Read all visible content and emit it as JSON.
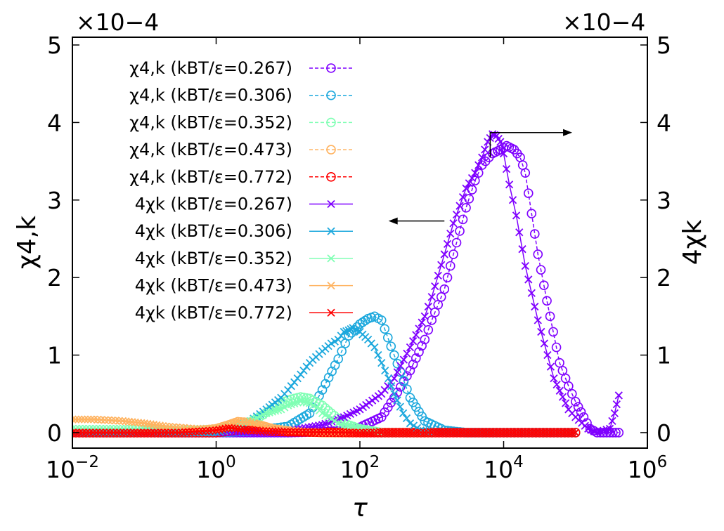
{
  "chart_data": {
    "type": "line",
    "title": "",
    "xlabel": "τ",
    "ylabel_left": "χ4,k",
    "ylabel_right": "4χk",
    "xscale": "log",
    "xlim": [
      0.01,
      1000000
    ],
    "ylim": [
      -0.2,
      5.1
    ],
    "y_multiplier": "×10−4",
    "xticks": [
      {
        "value": 0.01,
        "mant": "10",
        "exp": "−2"
      },
      {
        "value": 1,
        "mant": "10",
        "exp": "0"
      },
      {
        "value": 100,
        "mant": "10",
        "exp": "2"
      },
      {
        "value": 10000,
        "mant": "10",
        "exp": "4"
      },
      {
        "value": 1000000,
        "mant": "10",
        "exp": "6"
      }
    ],
    "yticks": [
      0,
      1,
      2,
      3,
      4,
      5
    ],
    "ytick_labels": [
      "0",
      "1",
      "2",
      "3",
      "4",
      "5"
    ],
    "legend_position": "upper-left",
    "arrows": [
      {
        "name": "arrow-right-axis",
        "points": [
          [
            6500,
            3.55
          ],
          [
            6500,
            3.87
          ]
        ],
        "to": [
          90000,
          3.87
        ],
        "meaning": "4χk read on right axis"
      },
      {
        "name": "arrow-left-axis",
        "from": [
          1500,
          2.73
        ],
        "to": [
          250,
          2.73
        ],
        "meaning": "χ4,k read on left axis"
      }
    ],
    "series": [
      {
        "name": "χ4,k (kBT/ε=0.267)",
        "kind": "chi4",
        "T": "0.267",
        "color": "#7f00ff",
        "marker": "o",
        "linestyle": "dashed",
        "x": [
          0.01,
          0.03,
          0.1,
          0.3,
          1,
          3,
          10,
          30,
          60,
          100,
          200,
          300,
          500,
          800,
          1000,
          1500,
          2000,
          3000,
          4000,
          5000,
          7000,
          9000,
          11000,
          14000,
          17000,
          20000,
          30000,
          40000,
          60000,
          80000,
          100000,
          130000,
          160000,
          200000,
          300000,
          400000
        ],
        "y": [
          0.0,
          0.0,
          0.0,
          0.0,
          0.0,
          0.0,
          0.0,
          0.01,
          0.03,
          0.07,
          0.2,
          0.45,
          0.8,
          1.2,
          1.45,
          1.85,
          2.3,
          2.9,
          3.25,
          3.45,
          3.6,
          3.65,
          3.7,
          3.65,
          3.55,
          3.35,
          2.3,
          1.7,
          0.9,
          0.6,
          0.4,
          0.2,
          0.05,
          0.0,
          0.0,
          0.0
        ]
      },
      {
        "name": "χ4,k (kBT/ε=0.306)",
        "kind": "chi4",
        "T": "0.306",
        "color": "#1ca8dd",
        "marker": "o",
        "linestyle": "dashed",
        "x": [
          0.01,
          0.1,
          1,
          3,
          10,
          20,
          30,
          50,
          70,
          100,
          130,
          160,
          200,
          300,
          500,
          800,
          1500,
          3000,
          10000,
          100000
        ],
        "y": [
          0.0,
          0.0,
          0.0,
          0.02,
          0.08,
          0.25,
          0.55,
          0.95,
          1.25,
          1.4,
          1.47,
          1.5,
          1.45,
          1.0,
          0.45,
          0.15,
          0.03,
          0.0,
          0.0,
          0.0
        ]
      },
      {
        "name": "χ4,k (kBT/ε=0.352)",
        "kind": "chi4",
        "T": "0.352",
        "color": "#80ffb4",
        "marker": "o",
        "linestyle": "dashed",
        "x": [
          0.01,
          0.1,
          1,
          2,
          4,
          7,
          10,
          15,
          20,
          30,
          40,
          60,
          100,
          200,
          1000
        ],
        "y": [
          0.0,
          0.0,
          0.01,
          0.05,
          0.2,
          0.35,
          0.42,
          0.46,
          0.44,
          0.35,
          0.25,
          0.12,
          0.05,
          0.0,
          0.0
        ]
      },
      {
        "name": "χ4,k (kBT/ε=0.473)",
        "kind": "chi4",
        "T": "0.473",
        "color": "#ffb360",
        "marker": "o",
        "linestyle": "dashed",
        "x": [
          0.01,
          0.03,
          0.1,
          0.3,
          1,
          1.5,
          2,
          3,
          4,
          6,
          10,
          30,
          100
        ],
        "y": [
          0.0,
          0.0,
          0.0,
          0.0,
          0.05,
          0.1,
          0.14,
          0.13,
          0.1,
          0.05,
          0.02,
          0.0,
          0.0
        ]
      },
      {
        "name": "χ4,k (kBT/ε=0.772)",
        "kind": "chi4",
        "T": "0.772",
        "color": "#ff0000",
        "marker": "o",
        "linestyle": "dashed",
        "x": [
          0.01,
          0.03,
          0.1,
          0.3,
          1,
          2,
          3,
          10,
          100,
          1000,
          10000,
          100000
        ],
        "y": [
          0.0,
          0.0,
          0.0,
          0.0,
          0.0,
          0.03,
          0.03,
          0.01,
          0.0,
          0.0,
          0.0,
          0.0
        ]
      },
      {
        "name": "4χk (kBT/ε=0.267)",
        "kind": "4chi",
        "T": "0.267",
        "color": "#7f00ff",
        "marker": "x",
        "linestyle": "solid",
        "x": [
          0.01,
          0.1,
          1,
          10,
          30,
          60,
          100,
          200,
          300,
          500,
          800,
          1000,
          1500,
          2000,
          3000,
          4000,
          5000,
          6000,
          7000,
          8000,
          9000,
          10000,
          12000,
          15000,
          20000,
          30000,
          50000,
          80000,
          100000,
          150000,
          200000,
          300000,
          350000,
          400000
        ],
        "y": [
          0.0,
          0.0,
          0.0,
          0.02,
          0.1,
          0.2,
          0.3,
          0.5,
          0.7,
          1.1,
          1.5,
          1.75,
          2.3,
          2.7,
          3.15,
          3.35,
          3.55,
          3.75,
          3.85,
          3.83,
          3.75,
          3.6,
          3.2,
          2.8,
          2.15,
          1.45,
          0.7,
          0.3,
          0.2,
          0.05,
          0.0,
          0.05,
          0.25,
          0.48
        ]
      },
      {
        "name": "4χk (kBT/ε=0.306)",
        "kind": "4chi",
        "T": "0.306",
        "color": "#1ca8dd",
        "marker": "x",
        "linestyle": "solid",
        "x": [
          0.01,
          0.1,
          1,
          3,
          5,
          8,
          10,
          15,
          20,
          30,
          40,
          50,
          60,
          70,
          80,
          100,
          130,
          160,
          200,
          250,
          300,
          400,
          500,
          700,
          1000,
          10000,
          100000
        ],
        "y": [
          0.0,
          0.0,
          0.0,
          0.15,
          0.3,
          0.45,
          0.55,
          0.75,
          0.9,
          1.05,
          1.15,
          1.2,
          1.3,
          1.32,
          1.35,
          1.3,
          1.2,
          1.1,
          0.9,
          0.7,
          0.5,
          0.25,
          0.12,
          0.03,
          0.0,
          0.0,
          0.0
        ]
      },
      {
        "name": "4χk (kBT/ε=0.352)",
        "kind": "4chi",
        "T": "0.352",
        "color": "#80ffb4",
        "marker": "x",
        "linestyle": "solid",
        "x": [
          0.01,
          0.03,
          0.1,
          0.3,
          0.6,
          1,
          1.5,
          2,
          3,
          5,
          8,
          10,
          15,
          20,
          25,
          30,
          40,
          50,
          100,
          200,
          1000
        ],
        "y": [
          0.05,
          0.05,
          0.05,
          0.05,
          0.05,
          0.05,
          0.08,
          0.1,
          0.15,
          0.25,
          0.3,
          0.35,
          0.4,
          0.38,
          0.32,
          0.25,
          0.18,
          0.12,
          0.05,
          0.0,
          0.0
        ]
      },
      {
        "name": "4χk (kBT/ε=0.473)",
        "kind": "4chi",
        "T": "0.473",
        "color": "#ffb360",
        "marker": "x",
        "linestyle": "solid",
        "x": [
          0.01,
          0.02,
          0.05,
          0.1,
          0.2,
          0.5,
          1,
          1.5,
          2,
          3,
          4,
          6,
          10,
          30,
          100
        ],
        "y": [
          0.17,
          0.17,
          0.15,
          0.12,
          0.08,
          0.05,
          0.05,
          0.1,
          0.14,
          0.13,
          0.1,
          0.06,
          0.03,
          0.0,
          0.0
        ]
      },
      {
        "name": "4χk (kBT/ε=0.772)",
        "kind": "4chi",
        "T": "0.772",
        "color": "#ff0000",
        "marker": "x",
        "linestyle": "solid",
        "x": [
          0.01,
          0.03,
          0.1,
          0.3,
          1,
          1.5,
          2,
          3,
          5,
          10,
          100,
          1000,
          10000,
          100000
        ],
        "y": [
          0.0,
          0.0,
          0.0,
          0.0,
          0.03,
          0.06,
          0.05,
          0.03,
          0.02,
          0.01,
          0.0,
          0.0,
          0.0,
          0.0
        ]
      }
    ]
  }
}
